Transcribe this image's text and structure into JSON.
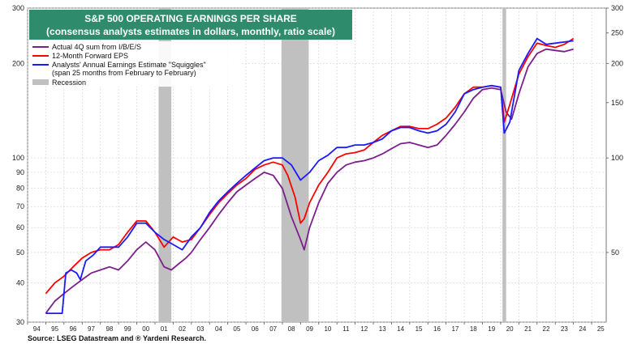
{
  "chart_data": {
    "type": "line",
    "title": "S&P 500 OPERATING EARNINGS PER SHARE",
    "subtitle": "(consensus analysts estimates in dollars, monthly, ratio scale)",
    "source": "Source: LSEG Datastream and ® Yardeni Research.",
    "y_scale": "log",
    "ylim_left": [
      30,
      300
    ],
    "ylim_right": [
      30,
      300
    ],
    "left_ticks": [
      30,
      40,
      50,
      60,
      70,
      80,
      90,
      100,
      200,
      300
    ],
    "left_tick_labels": [
      "30",
      "40",
      "50",
      "60",
      "70",
      "80",
      "90",
      "100",
      "200",
      "300"
    ],
    "right_ticks": [
      50,
      100,
      150,
      200,
      250,
      300
    ],
    "right_tick_labels": [
      "50",
      "100",
      "150",
      "200",
      "250",
      "300"
    ],
    "xlim": [
      1994,
      2025.8
    ],
    "x_tick_years": [
      1994,
      1995,
      1996,
      1997,
      1998,
      1999,
      2000,
      2001,
      2002,
      2003,
      2004,
      2005,
      2006,
      2007,
      2008,
      2009,
      2010,
      2011,
      2012,
      2013,
      2014,
      2015,
      2016,
      2017,
      2018,
      2019,
      2020,
      2021,
      2022,
      2023,
      2024,
      2025
    ],
    "x_tick_labels": [
      "94",
      "95",
      "96",
      "97",
      "98",
      "99",
      "00",
      "01",
      "02",
      "03",
      "04",
      "05",
      "06",
      "07",
      "08",
      "09",
      "10",
      "11",
      "12",
      "13",
      "14",
      "15",
      "16",
      "17",
      "18",
      "19",
      "20",
      "21",
      "22",
      "23",
      "24",
      "25"
    ],
    "grid": true,
    "legend_position": "top-left",
    "colors": {
      "actual": "#7b1f8c",
      "forward": "#ff0000",
      "squiggles": "#1a1aff",
      "squiggles_early": "#3399ff",
      "recession": "#c0c0c0",
      "title_bg": "#2e8b6b",
      "grid": "#d0d0d0"
    },
    "recessions": [
      {
        "start": 2001.2,
        "end": 2001.9
      },
      {
        "start": 2007.95,
        "end": 2009.45
      },
      {
        "start": 2020.1,
        "end": 2020.3
      }
    ],
    "series": [
      {
        "name": "Actual 4Q sum from I/B/E/S",
        "key": "actual",
        "x": [
          1995.0,
          1995.5,
          1996.0,
          1996.5,
          1997.0,
          1997.5,
          1998.0,
          1998.5,
          1999.0,
          1999.5,
          2000.0,
          2000.5,
          2001.0,
          2001.5,
          2001.9,
          2002.3,
          2002.7,
          2003.0,
          2003.5,
          2004.0,
          2004.5,
          2005.0,
          2005.5,
          2006.0,
          2006.5,
          2007.0,
          2007.5,
          2008.0,
          2008.5,
          2009.0,
          2009.2,
          2009.5,
          2010.0,
          2010.5,
          2011.0,
          2011.5,
          2012.0,
          2012.5,
          2013.0,
          2013.5,
          2014.0,
          2014.5,
          2015.0,
          2015.5,
          2016.0,
          2016.5,
          2017.0,
          2017.5,
          2018.0,
          2018.5,
          2019.0,
          2019.5,
          2020.0,
          2020.3,
          2020.6,
          2021.0,
          2021.5,
          2022.0,
          2022.5,
          2023.0,
          2023.5,
          2024.0
        ],
        "y": [
          32,
          35,
          37,
          39,
          41,
          43,
          44,
          45,
          44,
          47,
          51,
          54,
          51,
          45,
          44,
          46,
          48,
          50,
          55,
          60,
          66,
          72,
          78,
          82,
          86,
          90,
          88,
          80,
          65,
          55,
          51,
          60,
          72,
          83,
          90,
          95,
          97,
          98,
          100,
          103,
          107,
          111,
          112,
          110,
          108,
          110,
          118,
          128,
          140,
          155,
          165,
          167,
          165,
          140,
          133,
          160,
          195,
          215,
          222,
          220,
          218,
          222
        ]
      },
      {
        "name": "12-Month Forward EPS",
        "key": "forward",
        "x": [
          1995.0,
          1995.5,
          1996.0,
          1996.5,
          1997.0,
          1997.5,
          1998.0,
          1998.5,
          1999.0,
          1999.5,
          2000.0,
          2000.5,
          2001.0,
          2001.5,
          2002.0,
          2002.5,
          2003.0,
          2003.5,
          2004.0,
          2004.5,
          2005.0,
          2005.5,
          2006.0,
          2006.5,
          2007.0,
          2007.5,
          2008.0,
          2008.3,
          2008.7,
          2009.0,
          2009.2,
          2009.5,
          2010.0,
          2010.5,
          2011.0,
          2011.5,
          2012.0,
          2012.5,
          2013.0,
          2013.5,
          2014.0,
          2014.5,
          2015.0,
          2015.5,
          2016.0,
          2016.5,
          2017.0,
          2017.5,
          2018.0,
          2018.5,
          2019.0,
          2019.5,
          2020.0,
          2020.2,
          2020.5,
          2021.0,
          2021.5,
          2022.0,
          2022.5,
          2023.0,
          2023.5,
          2024.0
        ],
        "y": [
          37,
          40,
          42,
          45,
          48,
          50,
          51,
          51,
          53,
          58,
          63,
          63,
          58,
          52,
          56,
          54,
          55,
          60,
          66,
          72,
          77,
          82,
          86,
          92,
          95,
          97,
          95,
          88,
          75,
          62,
          64,
          72,
          82,
          90,
          100,
          103,
          104,
          106,
          112,
          118,
          122,
          126,
          126,
          124,
          124,
          128,
          134,
          145,
          160,
          168,
          168,
          170,
          168,
          130,
          148,
          185,
          210,
          232,
          228,
          225,
          230,
          240
        ]
      },
      {
        "name": "Analysts' Annual Earnings Estimate \"Squiggles\"",
        "key": "squiggles",
        "x": [
          1995.0,
          1995.3,
          1995.6,
          1995.9,
          1996.1,
          1996.4,
          1996.7,
          1996.9,
          1997.2,
          1997.6,
          1998.0,
          1998.5,
          1999.0,
          1999.5,
          2000.0,
          2000.5,
          2001.0,
          2001.5,
          2002.0,
          2002.5,
          2003.0,
          2003.5,
          2004.0,
          2004.5,
          2005.0,
          2005.5,
          2006.0,
          2006.5,
          2007.0,
          2007.5,
          2008.0,
          2008.5,
          2009.0,
          2009.5,
          2010.0,
          2010.5,
          2011.0,
          2011.5,
          2012.0,
          2012.5,
          2013.0,
          2013.5,
          2014.0,
          2014.5,
          2015.0,
          2015.5,
          2016.0,
          2016.5,
          2017.0,
          2017.5,
          2018.0,
          2018.5,
          2019.0,
          2019.5,
          2020.0,
          2020.2,
          2020.5,
          2021.0,
          2021.5,
          2022.0,
          2022.5,
          2023.0,
          2023.5,
          2024.0
        ],
        "y": [
          32,
          32,
          32,
          32,
          43,
          44,
          43,
          41,
          47,
          49,
          52,
          52,
          52,
          56,
          62,
          62,
          58,
          55,
          53,
          51,
          56,
          60,
          67,
          73,
          78,
          83,
          88,
          93,
          98,
          100,
          100,
          95,
          85,
          90,
          98,
          102,
          108,
          108,
          110,
          110,
          112,
          115,
          122,
          125,
          125,
          122,
          120,
          122,
          128,
          140,
          160,
          165,
          168,
          170,
          168,
          120,
          130,
          190,
          215,
          240,
          230,
          232,
          234,
          236
        ]
      }
    ],
    "legend": [
      {
        "label": "Actual 4Q sum from I/B/E/S",
        "key": "actual"
      },
      {
        "label": "12-Month Forward EPS",
        "key": "forward"
      },
      {
        "label": "Analysts' Annual Earnings Estimate \"Squiggles\"",
        "key": "squiggles"
      },
      {
        "label": "(span 25 months from February to February)",
        "key": "note"
      },
      {
        "label": "Recession",
        "key": "recession"
      }
    ]
  }
}
